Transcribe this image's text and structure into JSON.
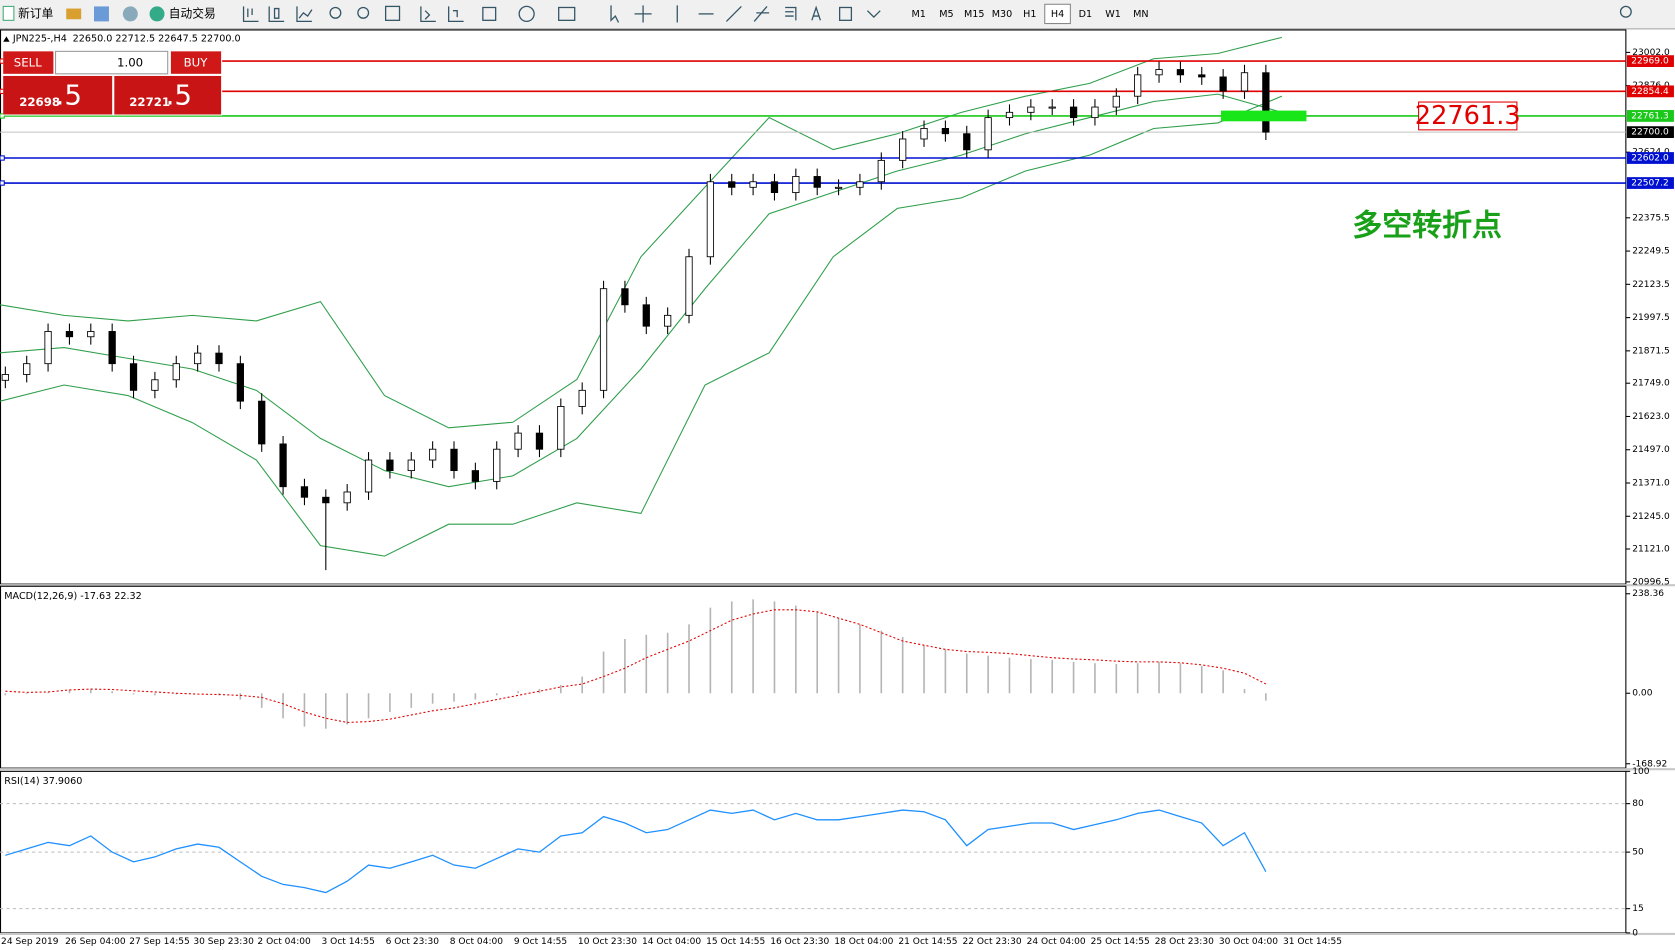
{
  "toolbar": {
    "buttons": [
      "新订单",
      "自动交易"
    ],
    "timeframes": [
      "M1",
      "M5",
      "M15",
      "M30",
      "H1",
      "H4",
      "D1",
      "W1",
      "MN"
    ]
  },
  "trade_panel": {
    "sell": "SELL",
    "lot": "1.00",
    "buy": "BUY",
    "bid_main": "22698",
    "bid_frac": ".5",
    "ask_main": "22721",
    "ask_frac": ".5"
  },
  "chart_data": [
    {
      "type": "candlestick",
      "title": "JPN225-,H4",
      "subtitle": "22650.0 22712.5 22647.5 22700.0",
      "x_labels": [
        "24 Sep 2019",
        "26 Sep 04:00",
        "27 Sep 14:55",
        "30 Sep 23:30",
        "2 Oct 04:00",
        "3 Oct 14:55",
        "6 Oct 23:30",
        "8 Oct 04:00",
        "9 Oct 14:55",
        "10 Oct 23:30",
        "14 Oct 04:00",
        "15 Oct 14:55",
        "16 Oct 23:30",
        "18 Oct 04:00",
        "21 Oct 14:55",
        "22 Oct 23:30",
        "24 Oct 04:00",
        "25 Oct 14:55",
        "28 Oct 23:30",
        "30 Oct 04:00",
        "31 Oct 14:55"
      ],
      "open": [
        21760,
        21782,
        21823,
        21945,
        21925,
        21945,
        21823,
        21722,
        21762,
        21823,
        21863,
        21823,
        21681,
        21519,
        21357,
        21317,
        21296,
        21337,
        21458,
        21418,
        21458,
        21499,
        21418,
        21377,
        21499,
        21560,
        21499,
        21661,
        21722,
        22107,
        22046,
        21965,
        22006,
        22228,
        22512,
        22491,
        22512,
        22471,
        22532,
        22491,
        22491,
        22512,
        22593,
        22674,
        22714,
        22694,
        22633,
        22755,
        22775,
        22795,
        22795,
        22755,
        22795,
        22836,
        22917,
        22937,
        22917,
        22909,
        22856,
        22925
      ],
      "high": [
        21812,
        21853,
        21975,
        21975,
        21975,
        21975,
        21853,
        21792,
        21853,
        21893,
        21893,
        21853,
        21711,
        21549,
        21387,
        21347,
        21367,
        21488,
        21488,
        21488,
        21529,
        21529,
        21448,
        21529,
        21590,
        21590,
        21691,
        21752,
        22137,
        22137,
        22076,
        22036,
        22258,
        22542,
        22542,
        22542,
        22542,
        22562,
        22562,
        22521,
        22542,
        22623,
        22704,
        22744,
        22744,
        22724,
        22785,
        22805,
        22825,
        22825,
        22825,
        22825,
        22866,
        22947,
        22967,
        22967,
        22947,
        22939,
        22955,
        22955
      ],
      "low": [
        21730,
        21752,
        21793,
        21895,
        21895,
        21793,
        21692,
        21692,
        21732,
        21793,
        21793,
        21651,
        21489,
        21327,
        21287,
        21041,
        21266,
        21307,
        21388,
        21388,
        21428,
        21388,
        21347,
        21347,
        21469,
        21469,
        21469,
        21631,
        21692,
        22016,
        21935,
        21935,
        21976,
        22198,
        22461,
        22461,
        22441,
        22441,
        22461,
        22461,
        22461,
        22482,
        22563,
        22644,
        22664,
        22603,
        22603,
        22725,
        22745,
        22765,
        22725,
        22725,
        22765,
        22806,
        22887,
        22887,
        22879,
        22826,
        22826,
        22670
      ],
      "close": [
        21782,
        21823,
        21945,
        21925,
        21945,
        21823,
        21722,
        21762,
        21823,
        21863,
        21823,
        21681,
        21519,
        21357,
        21317,
        21296,
        21337,
        21458,
        21418,
        21458,
        21499,
        21418,
        21377,
        21499,
        21560,
        21499,
        21661,
        21722,
        22107,
        22046,
        21965,
        22006,
        22228,
        22512,
        22491,
        22512,
        22471,
        22532,
        22491,
        22491,
        22512,
        22593,
        22674,
        22714,
        22694,
        22633,
        22755,
        22775,
        22795,
        22795,
        22755,
        22795,
        22836,
        22917,
        22937,
        22917,
        22909,
        22856,
        22925,
        22700
      ],
      "bands": {
        "color": "#2e9e4a",
        "upper": [
          22046,
          22006,
          21985,
          22006,
          21985,
          22058,
          21702,
          21580,
          21601,
          21763,
          22228,
          22492,
          22755,
          22634,
          22694,
          22775,
          22836,
          22885,
          22978,
          22998,
          23059
        ],
        "middle": [
          21864,
          21884,
          21843,
          21803,
          21722,
          21540,
          21418,
          21357,
          21398,
          21540,
          21803,
          22107,
          22391,
          22472,
          22553,
          22613,
          22694,
          22755,
          22816,
          22844,
          22775
        ],
        "lower": [
          21681,
          21742,
          21702,
          21600,
          21458,
          21134,
          21094,
          21215,
          21215,
          21296,
          21256,
          21742,
          21864,
          22228,
          22411,
          22451,
          22553,
          22613,
          22714,
          22735,
          22836
        ]
      },
      "hlines": [
        {
          "value": 22969,
          "label": "22969.0",
          "color": "#e00000"
        },
        {
          "value": 22854.4,
          "label": "22854.4",
          "color": "#e00000"
        },
        {
          "value": 22761.3,
          "label": "22761.3",
          "color": "#19c819"
        },
        {
          "value": 22700,
          "label": "22700.0",
          "color": "#c0c0c0"
        },
        {
          "value": 22602,
          "label": "22602.0",
          "color": "#0010d0"
        },
        {
          "value": 22507.2,
          "label": "22507.2",
          "color": "#0010d0"
        }
      ],
      "annotation": {
        "text": "22761.3",
        "color": "#e00000"
      },
      "callout": {
        "text": "多空转折点",
        "color": "#19a019"
      },
      "ylim": [
        20988,
        23087
      ],
      "yticks": [
        {
          "value": 23002,
          "label": "23002.0"
        },
        {
          "value": 22876,
          "label": "22876.0"
        },
        {
          "value": 22624,
          "label": "22624.0"
        },
        {
          "value": 22375.5,
          "label": "22375.5"
        },
        {
          "value": 22249.5,
          "label": "22249.5"
        },
        {
          "value": 22123.5,
          "label": "22123.5"
        },
        {
          "value": 21997.5,
          "label": "21997.5"
        },
        {
          "value": 21871.5,
          "label": "21871.5"
        },
        {
          "value": 21749,
          "label": "21749.0"
        },
        {
          "value": 21623,
          "label": "21623.0"
        },
        {
          "value": 21497,
          "label": "21497.0"
        },
        {
          "value": 21371,
          "label": "21371.0"
        },
        {
          "value": 21245,
          "label": "21245.0"
        },
        {
          "value": 21121,
          "label": "21121.0"
        },
        {
          "value": 20996.5,
          "label": "20996.5"
        }
      ]
    },
    {
      "type": "macd",
      "title": "MACD(12,26,9) -17.63 22.32",
      "histogram": [
        -5,
        -2,
        2,
        8,
        10,
        5,
        -3,
        -5,
        -3,
        0,
        -5,
        -15,
        -35,
        -60,
        -80,
        -85,
        -75,
        -60,
        -45,
        -35,
        -25,
        -20,
        -15,
        -5,
        5,
        10,
        20,
        40,
        100,
        130,
        140,
        145,
        165,
        205,
        220,
        225,
        220,
        210,
        195,
        180,
        165,
        150,
        135,
        115,
        105,
        95,
        90,
        85,
        82,
        80,
        75,
        72,
        70,
        72,
        75,
        72,
        65,
        55,
        10,
        -17.63
      ],
      "signal": [
        5,
        2,
        3,
        8,
        10,
        9,
        6,
        3,
        0,
        -2,
        -3,
        -5,
        -10,
        -25,
        -45,
        -60,
        -70,
        -68,
        -62,
        -52,
        -42,
        -35,
        -25,
        -15,
        -5,
        5,
        15,
        22,
        40,
        60,
        85,
        105,
        125,
        150,
        175,
        190,
        200,
        200,
        195,
        180,
        165,
        145,
        125,
        115,
        105,
        100,
        98,
        95,
        90,
        85,
        82,
        80,
        77,
        75,
        75,
        73,
        68,
        60,
        48,
        22.32
      ],
      "hist_color": "#b4b4b4",
      "signal_color": "#e00000",
      "ylim": [
        -179.4,
        256.3
      ],
      "yticks": [
        {
          "value": 238.36,
          "label": "238.36"
        },
        {
          "value": 0,
          "label": "0.00"
        },
        {
          "value": -168.92,
          "label": "-168.92"
        }
      ]
    },
    {
      "type": "line",
      "title": "RSI(14) 37.9060",
      "color": "#1e90ff",
      "values": [
        48,
        52,
        56,
        54,
        60,
        50,
        44,
        47,
        52,
        55,
        53,
        44,
        35,
        30,
        28,
        25,
        32,
        42,
        40,
        44,
        48,
        42,
        40,
        46,
        52,
        50,
        60,
        62,
        72,
        68,
        62,
        64,
        70,
        76,
        74,
        76,
        70,
        74,
        70,
        70,
        72,
        74,
        76,
        75,
        70,
        54,
        64,
        66,
        68,
        68,
        64,
        67,
        70,
        74,
        76,
        72,
        68,
        54,
        62,
        37.906
      ],
      "ylim": [
        0,
        100
      ],
      "yticks": [
        100,
        80,
        50,
        15,
        0
      ]
    }
  ]
}
